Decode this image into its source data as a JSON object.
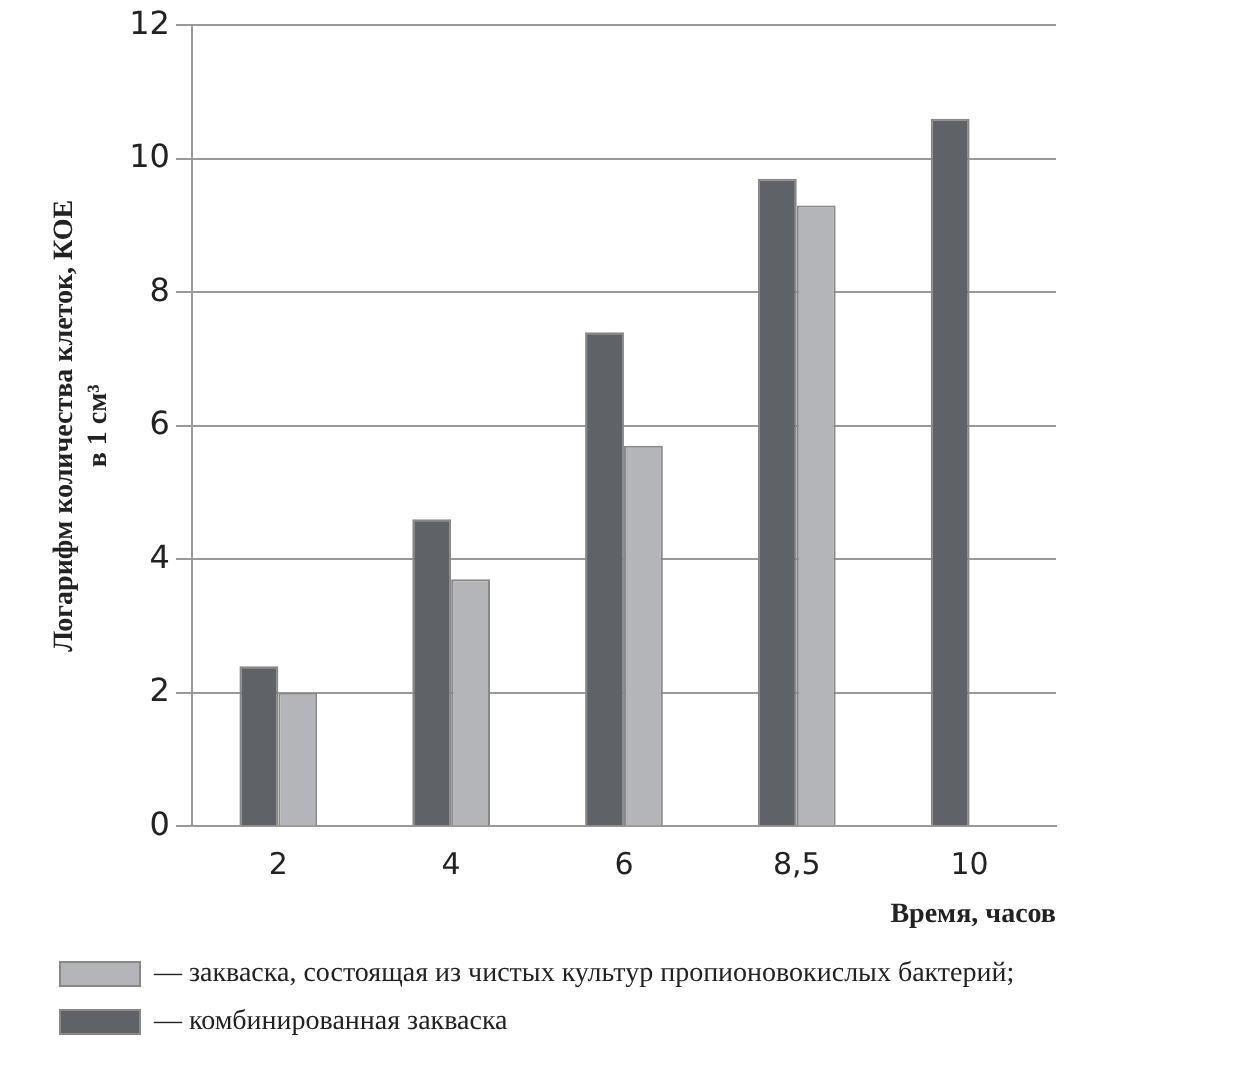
{
  "chart_data": {
    "type": "bar",
    "ylabel": "Логарифм количества клеток, КОЕ\nв 1 см³",
    "xlabel": "Время, часов",
    "categories": [
      "2",
      "4",
      "6",
      "8,5",
      "10"
    ],
    "series": [
      {
        "name": "— комбинированная закваска",
        "color": "#5f6368",
        "values": [
          2.4,
          4.6,
          7.4,
          9.7,
          10.6
        ]
      },
      {
        "name": "— закваска, состоящая из чистых культур пропионовокислых бактерий;",
        "color": "#b4b5b8",
        "values": [
          2.0,
          3.7,
          5.7,
          9.3,
          null
        ]
      }
    ],
    "ylim": [
      0,
      12
    ],
    "yticks": [
      0,
      2,
      4,
      6,
      8,
      10,
      12
    ],
    "grid": "y",
    "legend": "bottom left"
  }
}
